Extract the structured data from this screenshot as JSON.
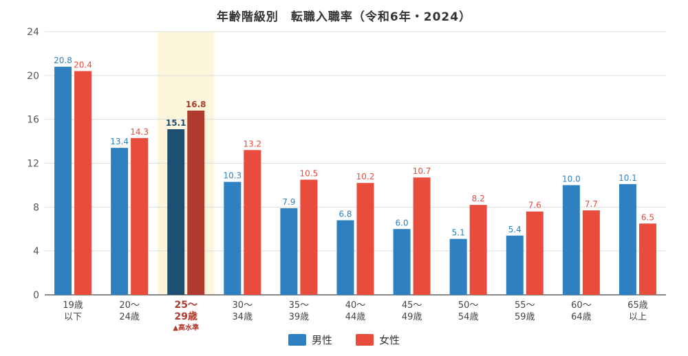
{
  "chart_data": {
    "type": "bar",
    "title": "年齢階級別　転職入職率（令和6年・2024）",
    "categories": [
      {
        "line1": "19歳",
        "line2": "以下"
      },
      {
        "line1": "20〜",
        "line2": "24歳"
      },
      {
        "line1": "25〜",
        "line2": "29歳",
        "note": "▲高水準",
        "highlight": true
      },
      {
        "line1": "30〜",
        "line2": "34歳"
      },
      {
        "line1": "35〜",
        "line2": "39歳"
      },
      {
        "line1": "40〜",
        "line2": "44歳"
      },
      {
        "line1": "45〜",
        "line2": "49歳"
      },
      {
        "line1": "50〜",
        "line2": "54歳"
      },
      {
        "line1": "55〜",
        "line2": "59歳"
      },
      {
        "line1": "60〜",
        "line2": "64歳"
      },
      {
        "line1": "65歳",
        "line2": "以上"
      }
    ],
    "series": [
      {
        "name": "男性",
        "color": "#2e80c0",
        "highlight_color": "#1f4e73",
        "label_color": "#2e80c0",
        "values": [
          20.8,
          13.4,
          15.1,
          10.3,
          7.9,
          6.8,
          6.0,
          5.1,
          5.4,
          10.0,
          10.1
        ]
      },
      {
        "name": "女性",
        "color": "#e84c3d",
        "highlight_color": "#b03a2e",
        "label_color": "#e84c3d",
        "values": [
          20.4,
          14.3,
          16.8,
          13.2,
          10.5,
          10.2,
          10.7,
          8.2,
          7.6,
          7.7,
          6.5
        ]
      }
    ],
    "ylim": [
      0,
      24
    ],
    "yticks": [
      0,
      4,
      8,
      12,
      16,
      20,
      24
    ],
    "highlight_band_color": "#fdf6dc",
    "highlight_label_color": "#b03a2e",
    "grid": true,
    "legend_position": "bottom-center"
  }
}
